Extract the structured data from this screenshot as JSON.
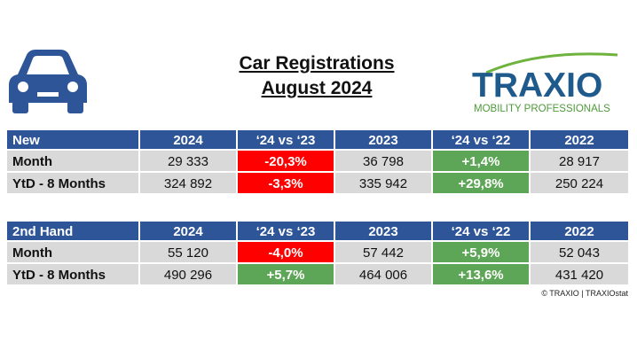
{
  "header": {
    "title": "Car Registrations",
    "subtitle": "August 2024"
  },
  "logo": {
    "name": "TRAXIO",
    "tagline": "MOBILITY PROFESSIONALS"
  },
  "tables": [
    {
      "header": [
        "New",
        "2024",
        "‘24 vs ‘23",
        "2023",
        "‘24 vs ‘22",
        "2022"
      ],
      "rows": [
        [
          "Month",
          "29 333",
          "-20,3%",
          "36 798",
          "+1,4%",
          "28 917"
        ],
        [
          "YtD - 8 Months",
          "324 892",
          "-3,3%",
          "335 942",
          "+29,8%",
          "250 224"
        ]
      ]
    },
    {
      "header": [
        "2nd Hand",
        "2024",
        "‘24 vs ‘23",
        "2023",
        "‘24 vs ‘22",
        "2022"
      ],
      "rows": [
        [
          "Month",
          "55 120",
          "-4,0%",
          "57 442",
          "+5,9%",
          "52 043"
        ],
        [
          "YtD - 8 Months",
          "490 296",
          "+5,7%",
          "464 006",
          "+13,6%",
          "431 420"
        ]
      ]
    }
  ],
  "footer": "© TRAXIO | TRAXIOstat"
}
